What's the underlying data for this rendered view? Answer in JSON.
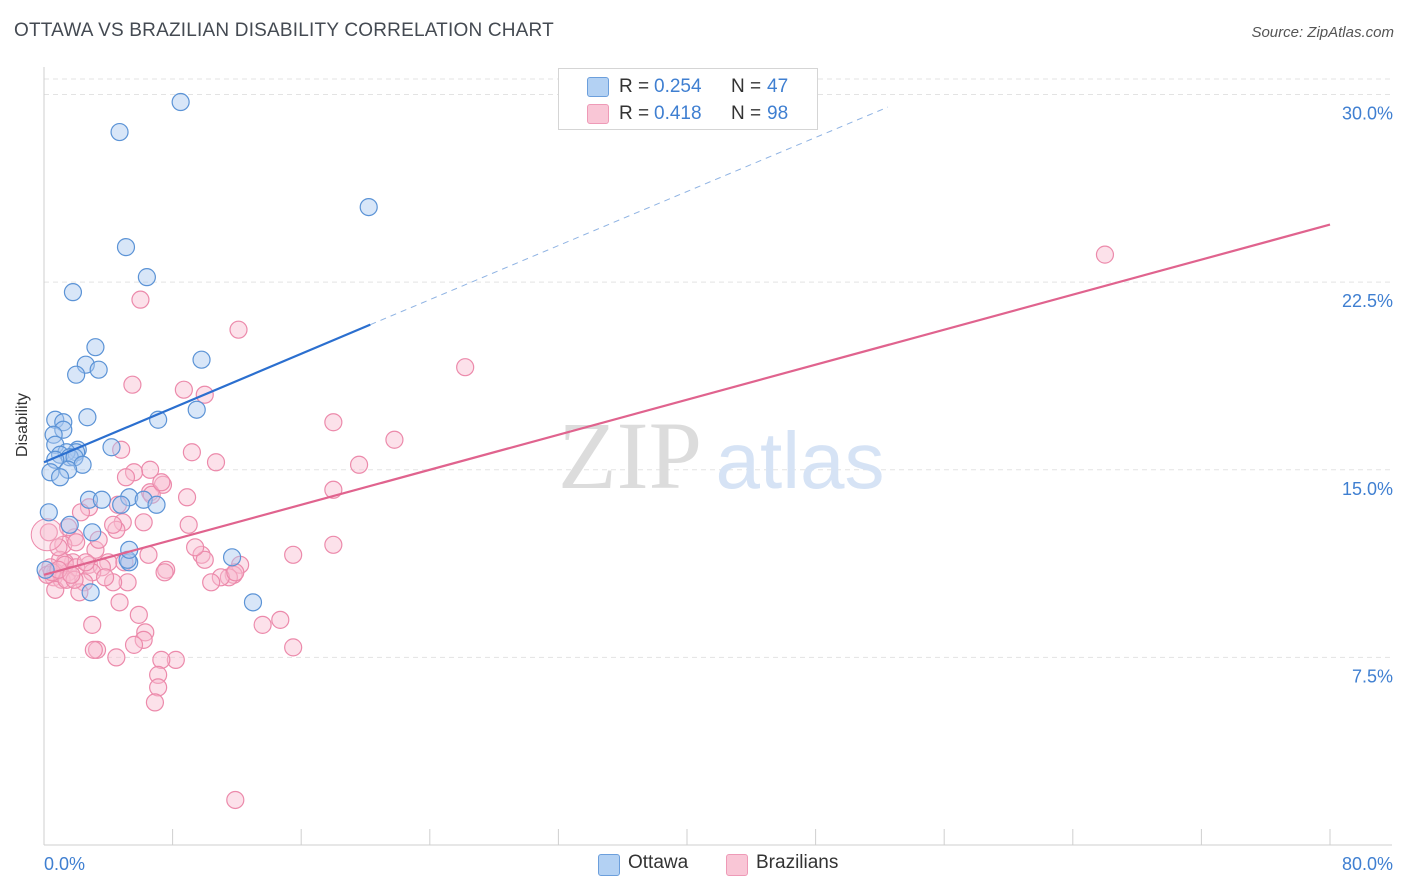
{
  "header": {
    "title": "OTTAWA VS BRAZILIAN DISABILITY CORRELATION CHART",
    "source": "Source: ZipAtlas.com"
  },
  "watermark": {
    "zip": "ZIP",
    "atlas": "atlas"
  },
  "stats": [
    {
      "r_label": "R =",
      "r_value": "0.254",
      "n_label": "N =",
      "n_value": "47"
    },
    {
      "r_label": "R =",
      "r_value": "0.418",
      "n_label": "N =",
      "n_value": "98"
    }
  ],
  "legend": {
    "series_1": "Ottawa",
    "series_2": "Brazilians"
  },
  "colors": {
    "ottawa_fill": "#a8c8f0",
    "ottawa_stroke": "#5b93d6",
    "ottawa_line": "#2b6fcf",
    "brazil_fill": "#f8bcd0",
    "brazil_stroke": "#ec8aab",
    "brazil_line": "#e0638e",
    "tick_text": "#3f7fd1",
    "grid": "#e3e3e3"
  },
  "chart_data": {
    "type": "scatter",
    "title": "OTTAWA VS BRAZILIAN DISABILITY CORRELATION CHART",
    "xlabel": "",
    "ylabel": "Disability",
    "xlim": [
      0,
      80
    ],
    "ylim": [
      0,
      31.5
    ],
    "x_ticks": [
      0,
      80
    ],
    "x_tick_labels": [
      "0.0%",
      "80.0%"
    ],
    "y_ticks": [
      7.5,
      15.0,
      22.5,
      30.0
    ],
    "y_tick_labels": [
      "7.5%",
      "15.0%",
      "22.5%",
      "30.0%"
    ],
    "grid": true,
    "series": [
      {
        "name": "Ottawa",
        "r": 0.254,
        "n": 47,
        "trend": {
          "x0": 0,
          "y0": 15.3,
          "x1": 20.3,
          "y1": 20.8,
          "dashed_to_x": 52.5,
          "dashed_to_y": 29.5
        },
        "points": [
          [
            8.5,
            29.7
          ],
          [
            4.7,
            28.5
          ],
          [
            20.2,
            25.5
          ],
          [
            5.1,
            23.9
          ],
          [
            6.4,
            22.7
          ],
          [
            1.8,
            22.1
          ],
          [
            3.2,
            19.9
          ],
          [
            9.8,
            19.4
          ],
          [
            2.6,
            19.2
          ],
          [
            3.4,
            19.0
          ],
          [
            2.0,
            18.8
          ],
          [
            9.5,
            17.4
          ],
          [
            2.7,
            17.1
          ],
          [
            7.1,
            17.0
          ],
          [
            0.7,
            17.0
          ],
          [
            1.2,
            16.9
          ],
          [
            1.2,
            16.6
          ],
          [
            0.6,
            16.4
          ],
          [
            0.7,
            16.0
          ],
          [
            4.2,
            15.9
          ],
          [
            2.1,
            15.8
          ],
          [
            2.0,
            15.7
          ],
          [
            1.4,
            15.7
          ],
          [
            1.0,
            15.6
          ],
          [
            1.6,
            15.5
          ],
          [
            1.9,
            15.5
          ],
          [
            0.7,
            15.4
          ],
          [
            2.4,
            15.2
          ],
          [
            1.5,
            15.0
          ],
          [
            0.4,
            14.9
          ],
          [
            1.0,
            14.7
          ],
          [
            5.3,
            13.9
          ],
          [
            2.8,
            13.8
          ],
          [
            3.6,
            13.8
          ],
          [
            6.2,
            13.8
          ],
          [
            4.8,
            13.6
          ],
          [
            7.0,
            13.6
          ],
          [
            0.3,
            13.3
          ],
          [
            1.6,
            12.8
          ],
          [
            3.0,
            12.5
          ],
          [
            11.7,
            11.5
          ],
          [
            5.3,
            11.3
          ],
          [
            5.2,
            11.4
          ],
          [
            0.1,
            11.0
          ],
          [
            13.0,
            9.7
          ],
          [
            2.9,
            10.1
          ],
          [
            5.3,
            11.8
          ]
        ]
      },
      {
        "name": "Brazilians",
        "r": 0.418,
        "n": 98,
        "trend": {
          "x0": 0,
          "y0": 10.8,
          "x1": 80,
          "y1": 24.8
        },
        "points": [
          [
            66.0,
            23.6
          ],
          [
            6.0,
            21.8
          ],
          [
            12.1,
            20.6
          ],
          [
            26.2,
            19.1
          ],
          [
            5.5,
            18.4
          ],
          [
            8.7,
            18.2
          ],
          [
            10.0,
            18.0
          ],
          [
            18.0,
            16.9
          ],
          [
            21.8,
            16.2
          ],
          [
            4.8,
            15.8
          ],
          [
            9.2,
            15.7
          ],
          [
            10.7,
            15.3
          ],
          [
            19.6,
            15.2
          ],
          [
            6.6,
            15.0
          ],
          [
            5.6,
            14.9
          ],
          [
            5.1,
            14.7
          ],
          [
            2.8,
            13.5
          ],
          [
            7.4,
            14.4
          ],
          [
            18.0,
            14.2
          ],
          [
            6.6,
            14.1
          ],
          [
            8.9,
            13.9
          ],
          [
            6.7,
            14.0
          ],
          [
            4.6,
            13.6
          ],
          [
            2.3,
            13.3
          ],
          [
            4.9,
            12.9
          ],
          [
            6.2,
            12.9
          ],
          [
            9.0,
            12.8
          ],
          [
            4.5,
            12.6
          ],
          [
            1.9,
            12.3
          ],
          [
            0.3,
            12.5
          ],
          [
            1.2,
            12.0
          ],
          [
            3.2,
            11.8
          ],
          [
            6.5,
            11.6
          ],
          [
            9.8,
            11.6
          ],
          [
            15.5,
            11.6
          ],
          [
            18.0,
            12.0
          ],
          [
            2.8,
            11.2
          ],
          [
            4.0,
            11.3
          ],
          [
            1.8,
            11.3
          ],
          [
            1.3,
            11.3
          ],
          [
            1.0,
            11.4
          ],
          [
            0.4,
            11.1
          ],
          [
            0.7,
            10.9
          ],
          [
            1.5,
            10.9
          ],
          [
            0.6,
            10.7
          ],
          [
            1.1,
            10.6
          ],
          [
            0.2,
            10.8
          ],
          [
            1.3,
            11.2
          ],
          [
            2.0,
            11.1
          ],
          [
            3.6,
            11.1
          ],
          [
            5.0,
            11.3
          ],
          [
            7.6,
            11.0
          ],
          [
            10.0,
            11.4
          ],
          [
            12.2,
            11.2
          ],
          [
            11.8,
            10.8
          ],
          [
            11.5,
            10.7
          ],
          [
            11.0,
            10.7
          ],
          [
            7.5,
            10.9
          ],
          [
            5.2,
            10.5
          ],
          [
            4.3,
            10.5
          ],
          [
            10.4,
            10.5
          ],
          [
            3.0,
            10.9
          ],
          [
            2.5,
            10.5
          ],
          [
            0.7,
            10.2
          ],
          [
            1.4,
            10.6
          ],
          [
            2.2,
            10.1
          ],
          [
            4.7,
            9.7
          ],
          [
            14.7,
            9.0
          ],
          [
            5.9,
            9.2
          ],
          [
            3.0,
            8.8
          ],
          [
            13.6,
            8.8
          ],
          [
            6.3,
            8.5
          ],
          [
            6.2,
            8.2
          ],
          [
            5.6,
            8.0
          ],
          [
            15.5,
            7.9
          ],
          [
            3.3,
            7.8
          ],
          [
            3.1,
            7.8
          ],
          [
            4.5,
            7.5
          ],
          [
            8.2,
            7.4
          ],
          [
            7.3,
            7.4
          ],
          [
            7.1,
            6.8
          ],
          [
            7.1,
            6.3
          ],
          [
            6.9,
            5.7
          ],
          [
            11.9,
            1.8
          ],
          [
            1.5,
            12.7
          ],
          [
            2.0,
            12.1
          ],
          [
            0.9,
            11.9
          ],
          [
            3.8,
            10.7
          ],
          [
            0.5,
            10.9
          ],
          [
            1.9,
            10.6
          ],
          [
            2.6,
            11.3
          ],
          [
            0.9,
            11.0
          ],
          [
            1.7,
            10.8
          ],
          [
            3.4,
            12.2
          ],
          [
            4.3,
            12.8
          ],
          [
            9.4,
            11.9
          ],
          [
            11.9,
            10.9
          ],
          [
            7.3,
            14.5
          ]
        ]
      }
    ]
  }
}
